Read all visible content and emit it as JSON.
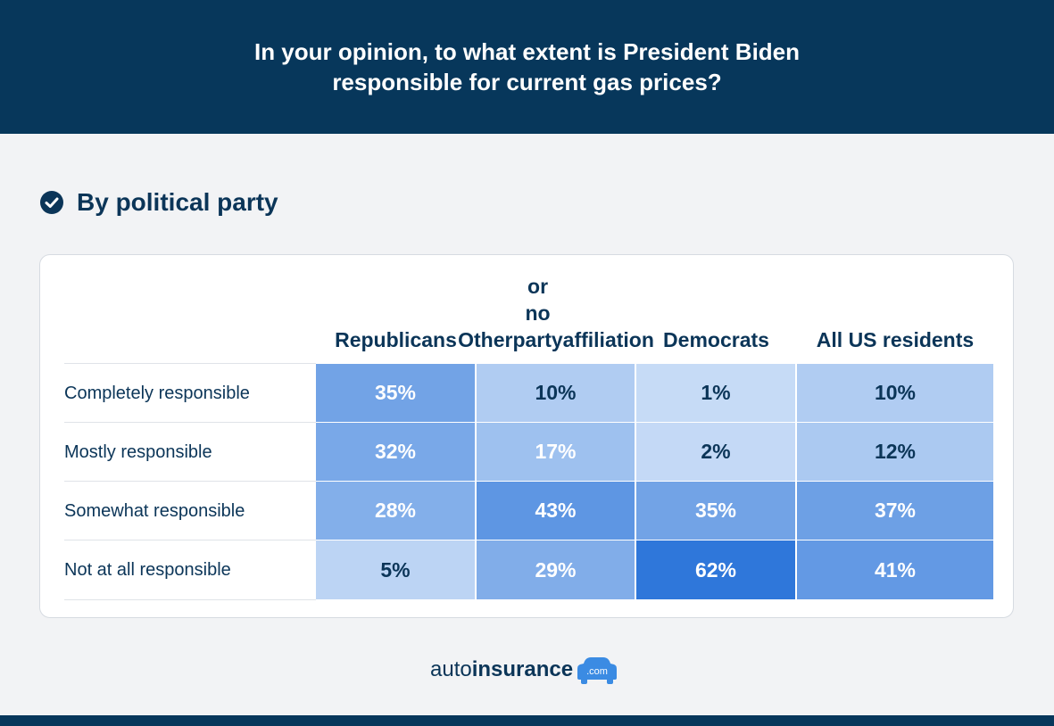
{
  "header": {
    "title_line1": "In your opinion, to what extent is President Biden",
    "title_line2": "responsible for current gas prices?"
  },
  "subtitle": "By political party",
  "logo": {
    "part1": "auto",
    "part2": "insurance",
    "part3": ".com"
  },
  "colors": {
    "header_bg": "#07375b",
    "text": "#0b3558",
    "heat_low": "#c6dbf6",
    "heat_high": "#2f77da"
  },
  "chart_data": {
    "type": "table",
    "title": "In your opinion, to what extent is President Biden responsible for current gas prices?",
    "subtitle": "By political party",
    "columns": [
      {
        "label_lines": [
          "Republicans"
        ]
      },
      {
        "label_lines": [
          "Other",
          "or no party",
          "affiliation"
        ]
      },
      {
        "label_lines": [
          "Democrats"
        ]
      },
      {
        "label_lines": [
          "All US residents"
        ]
      }
    ],
    "rows": [
      {
        "label": "Completely responsible",
        "values": [
          35,
          10,
          1,
          10
        ],
        "display": [
          "35%",
          "10%",
          "1%",
          "10%"
        ]
      },
      {
        "label": "Mostly responsible",
        "values": [
          32,
          17,
          2,
          12
        ],
        "display": [
          "32%",
          "17%",
          "2%",
          "12%"
        ]
      },
      {
        "label": "Somewhat responsible",
        "values": [
          28,
          43,
          35,
          37
        ],
        "display": [
          "28%",
          "43%",
          "35%",
          "37%"
        ]
      },
      {
        "label": "Not at all responsible",
        "values": [
          5,
          29,
          62,
          41
        ],
        "display": [
          "5%",
          "29%",
          "62%",
          "41%"
        ]
      }
    ]
  }
}
